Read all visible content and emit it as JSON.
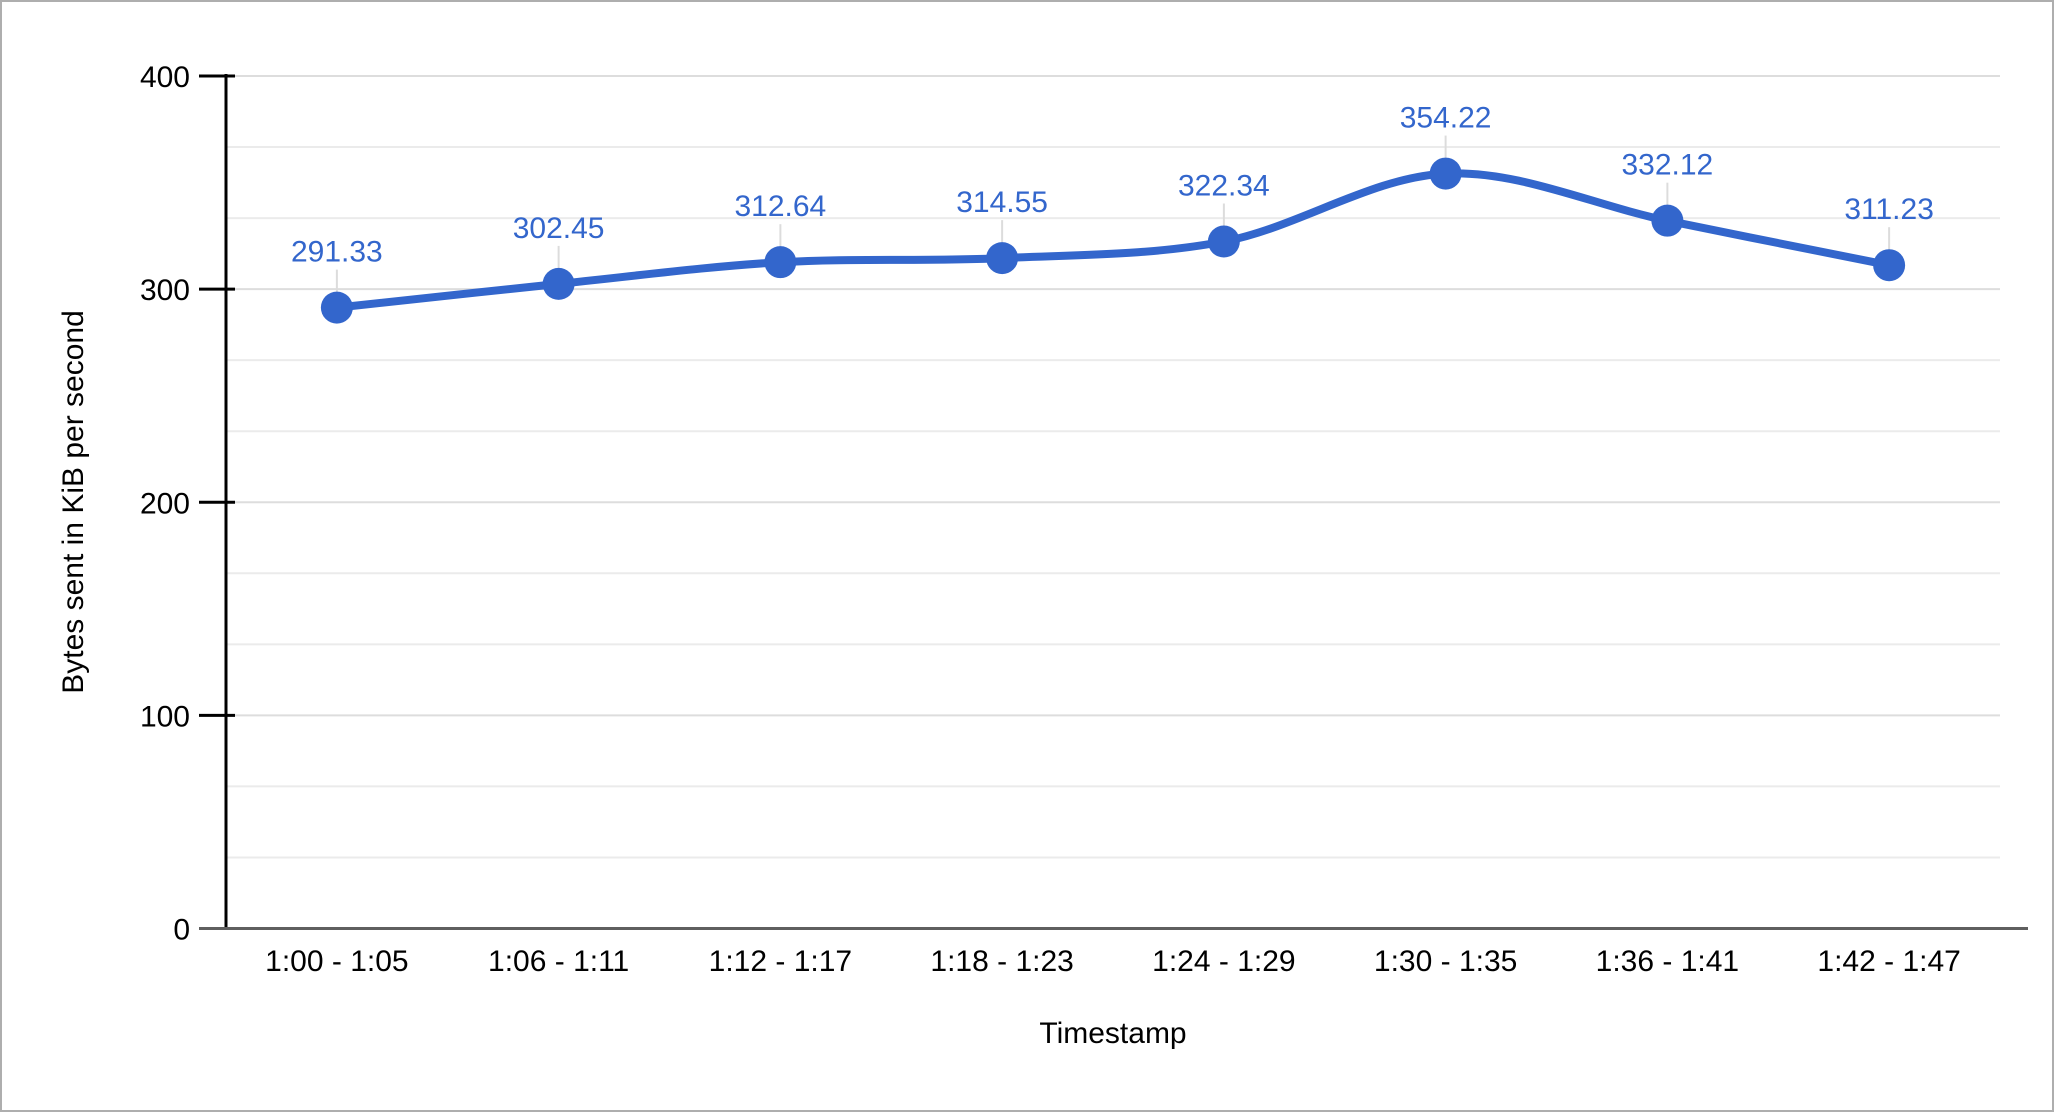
{
  "chart_data": {
    "type": "line",
    "smooth": true,
    "title": "",
    "xlabel": "Timestamp",
    "ylabel": "Bytes sent in KiB per second",
    "categories": [
      "1:00 - 1:05",
      "1:06 - 1:11",
      "1:12 - 1:17",
      "1:18 - 1:23",
      "1:24 - 1:29",
      "1:30 - 1:35",
      "1:36 - 1:41",
      "1:42 - 1:47"
    ],
    "values": [
      291.33,
      302.45,
      312.64,
      314.55,
      322.34,
      354.22,
      332.12,
      311.23
    ],
    "point_labels": [
      "291.33",
      "302.45",
      "312.64",
      "314.55",
      "322.34",
      "354.22",
      "332.12",
      "311.23"
    ],
    "ylim": [
      0,
      400
    ],
    "yticks": [
      0,
      100,
      200,
      300,
      400
    ],
    "ytick_labels": [
      "0",
      "100",
      "200",
      "300",
      "400"
    ],
    "minor_gridlines_per_major": 3,
    "grid": "horizontal",
    "legend_position": "none",
    "colors": {
      "line": "#3366CC",
      "marker": "#3366CC",
      "data_label": "#3366CC",
      "major_gridline": "#DDDDDD",
      "minor_gridline": "#EBEBEB",
      "leader_line": "#DCDCDC",
      "y_axis_line": "#000000",
      "y_axis_tick": "#000000",
      "x_axis_line": "#5F5F5F",
      "tick_label": "#000000",
      "axis_title": "#000000",
      "background": "#FFFFFF"
    }
  }
}
